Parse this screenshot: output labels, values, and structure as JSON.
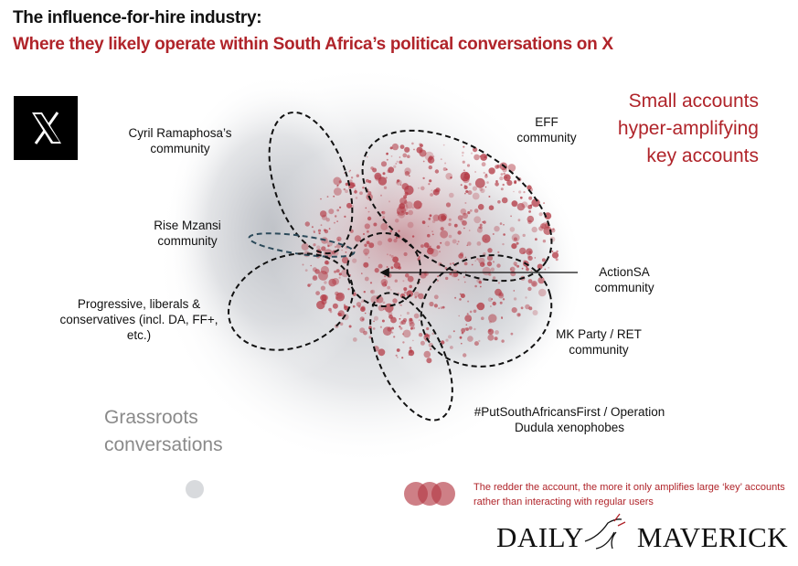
{
  "title": "The influence-for-hire industry:",
  "subtitle": "Where they likely operate within South Africa’s political conversations on X",
  "platform_logo": "X",
  "communities": {
    "ramaphosa": "Cyril Ramaphosa’s community",
    "eff": "EFF community",
    "rise": "Rise Mzansi community",
    "progressive": "Progressive, liberals & conservatives (incl. DA, FF+, etc.)",
    "actionsa": "ActionSA community",
    "mk": "MK Party / RET community",
    "dudula": "#PutSouthAfricansFirst / Operation Dudula xenophobes"
  },
  "callouts": {
    "small_accounts": "Small accounts hyper-amplifying key accounts",
    "grassroots": "Grassroots conversations"
  },
  "legend": "The redder the account, the more it only amplifies large ‘key’ accounts rather than interacting with regular users",
  "publisher_logo": "DAILY MAVERICK",
  "colors": {
    "accent": "#b0242a",
    "node_red": "#b33a45",
    "cloud_gray": "#c9ccd0"
  }
}
